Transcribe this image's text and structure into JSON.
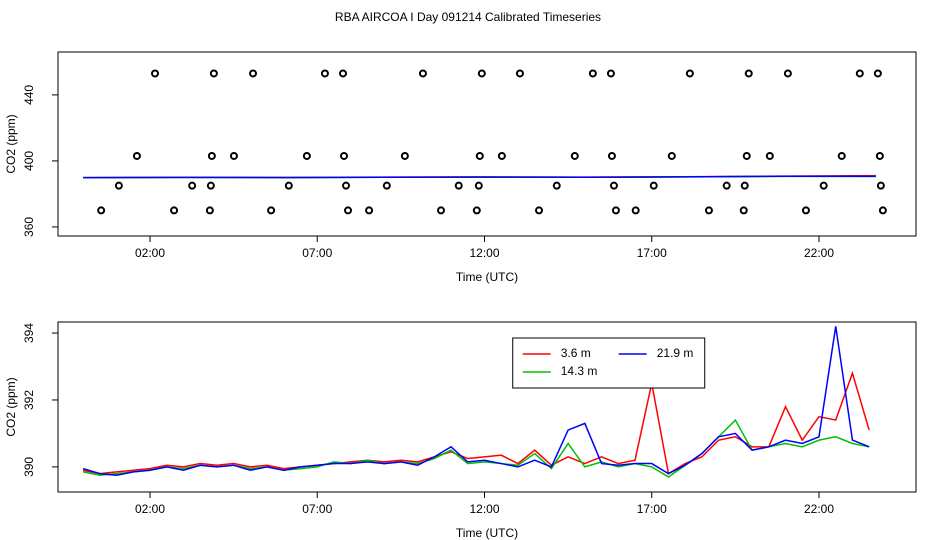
{
  "title": "RBA AIRCOA I  Day 091214  Calibrated Timeseries",
  "chart_data": [
    {
      "type": "line",
      "xlabel": "Time (UTC)",
      "ylabel": "CO2 (ppm)",
      "xlim": [
        -0.75,
        24.9
      ],
      "xticks": [
        {
          "value": 2,
          "label": "02:00"
        },
        {
          "value": 7,
          "label": "07:00"
        },
        {
          "value": 12,
          "label": "12:00"
        },
        {
          "value": 17,
          "label": "17:00"
        },
        {
          "value": 22,
          "label": "22:00"
        }
      ],
      "ylim": [
        354.5,
        466
      ],
      "yticks": [
        360,
        400,
        440
      ],
      "x": [
        0,
        3,
        6,
        9,
        12,
        15,
        18,
        21,
        23.7
      ],
      "series": [
        {
          "color": "#ff0000",
          "values": [
            389.9,
            390.0,
            390.0,
            390.2,
            390.3,
            390.2,
            390.4,
            390.8,
            391.1
          ]
        },
        {
          "color": "#00c000",
          "values": [
            389.8,
            390.0,
            389.9,
            390.1,
            390.2,
            390.1,
            390.3,
            390.6,
            390.6
          ]
        },
        {
          "color": "#0000ff",
          "values": [
            389.9,
            390.0,
            389.9,
            390.1,
            390.2,
            390.1,
            390.3,
            390.7,
            390.6
          ]
        }
      ],
      "markers": {
        "color": "#000000",
        "x": [
          2.15,
          3.91,
          5.08,
          7.23,
          7.77,
          10.16,
          11.92,
          13.06,
          15.24,
          15.78,
          18.14,
          19.9,
          21.07,
          23.22,
          23.76,
          1.61,
          3.85,
          4.51,
          6.69,
          7.8,
          9.62,
          11.86,
          12.52,
          14.7,
          15.81,
          17.6,
          19.84,
          20.53,
          22.68,
          23.82,
          1.07,
          3.26,
          3.82,
          6.15,
          7.86,
          9.08,
          11.23,
          11.83,
          14.16,
          15.87,
          17.06,
          19.24,
          19.78,
          22.14,
          23.85,
          0.54,
          2.72,
          3.79,
          5.62,
          7.92,
          8.55,
          10.7,
          11.77,
          13.63,
          15.93,
          16.52,
          18.71,
          19.75,
          21.61,
          23.91
        ],
        "values": [
          453,
          453,
          453,
          453,
          453,
          453,
          453,
          453,
          453,
          453,
          453,
          453,
          453,
          453,
          453,
          403,
          403,
          403,
          403,
          403,
          403,
          403,
          403,
          403,
          403,
          403,
          403,
          403,
          403,
          403,
          385,
          385,
          385,
          385,
          385,
          385,
          385,
          385,
          385,
          385,
          385,
          385,
          385,
          385,
          385,
          370,
          370,
          370,
          370,
          370,
          370,
          370,
          370,
          370,
          370,
          370,
          370,
          370,
          370,
          370
        ]
      }
    },
    {
      "type": "line",
      "xlabel": "Time (UTC)",
      "ylabel": "CO2 (ppm)",
      "xlim": [
        -0.75,
        24.9
      ],
      "xticks": [
        {
          "value": 2,
          "label": "02:00"
        },
        {
          "value": 7,
          "label": "07:00"
        },
        {
          "value": 12,
          "label": "12:00"
        },
        {
          "value": 17,
          "label": "17:00"
        },
        {
          "value": 22,
          "label": "22:00"
        }
      ],
      "ylim": [
        389.25,
        394.33
      ],
      "yticks": [
        390,
        392,
        394
      ],
      "legend": "top",
      "x": [
        0,
        0.5,
        1,
        1.5,
        2,
        2.5,
        3,
        3.5,
        4,
        4.5,
        5,
        5.5,
        6,
        6.5,
        7,
        7.5,
        8,
        8.5,
        9,
        9.5,
        10,
        10.5,
        11,
        11.5,
        12,
        12.5,
        13,
        13.5,
        14,
        14.5,
        15,
        15.5,
        16,
        16.5,
        17,
        17.5,
        18,
        18.5,
        19,
        19.5,
        20,
        20.5,
        21,
        21.5,
        22,
        22.5,
        23,
        23.5
      ],
      "series": [
        {
          "name": "3.6 m",
          "color": "#ff0000",
          "values": [
            389.9,
            389.8,
            389.85,
            389.9,
            389.95,
            390.05,
            390.0,
            390.1,
            390.05,
            390.1,
            390.0,
            390.05,
            389.95,
            390.0,
            390.05,
            390.1,
            390.15,
            390.2,
            390.15,
            390.2,
            390.15,
            390.3,
            390.45,
            390.25,
            390.3,
            390.35,
            390.1,
            390.5,
            390.05,
            390.3,
            390.1,
            390.3,
            390.1,
            390.2,
            392.5,
            389.8,
            390.1,
            390.3,
            390.8,
            390.9,
            390.6,
            390.6,
            391.8,
            390.8,
            391.5,
            391.4,
            392.8,
            391.1
          ]
        },
        {
          "name": "14.3 m",
          "color": "#00c000",
          "values": [
            389.85,
            389.75,
            389.8,
            389.85,
            389.9,
            390.0,
            389.95,
            390.05,
            390.0,
            390.05,
            389.95,
            390.0,
            389.9,
            389.95,
            390.0,
            390.15,
            390.1,
            390.2,
            390.1,
            390.15,
            390.1,
            390.25,
            390.5,
            390.1,
            390.15,
            390.1,
            390.05,
            390.4,
            389.95,
            390.7,
            390.0,
            390.15,
            390.0,
            390.1,
            390.0,
            389.7,
            390.05,
            390.4,
            390.9,
            391.4,
            390.5,
            390.6,
            390.7,
            390.6,
            390.8,
            390.9,
            390.7,
            390.6
          ]
        },
        {
          "name": "21.9 m",
          "color": "#0000ff",
          "values": [
            389.95,
            389.8,
            389.75,
            389.85,
            389.9,
            390.0,
            389.9,
            390.05,
            390.0,
            390.05,
            389.9,
            390.0,
            389.9,
            390.0,
            390.05,
            390.1,
            390.1,
            390.15,
            390.1,
            390.15,
            390.05,
            390.3,
            390.6,
            390.15,
            390.2,
            390.1,
            390.0,
            390.2,
            390.0,
            391.1,
            391.3,
            390.1,
            390.05,
            390.1,
            390.1,
            389.8,
            390.05,
            390.4,
            390.9,
            391.0,
            390.5,
            390.6,
            390.8,
            390.7,
            390.9,
            394.2,
            390.8,
            390.6
          ]
        }
      ]
    }
  ]
}
